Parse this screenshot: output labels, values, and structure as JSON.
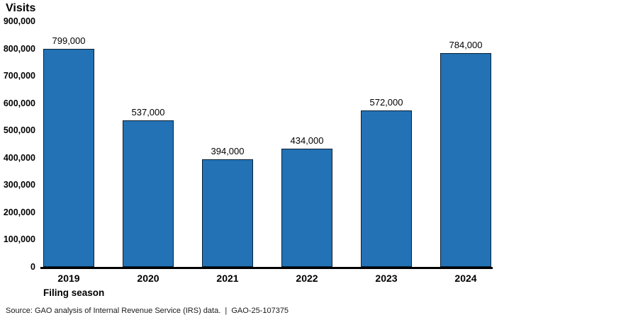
{
  "chart_data": {
    "type": "bar",
    "title": "Visits",
    "categories": [
      "2019",
      "2020",
      "2021",
      "2022",
      "2023",
      "2024"
    ],
    "values": [
      799000,
      537000,
      394000,
      434000,
      572000,
      784000
    ],
    "value_labels": [
      "799,000",
      "537,000",
      "394,000",
      "434,000",
      "572,000",
      "784,000"
    ],
    "xlabel": "Filing season",
    "ylabel": "Visits",
    "ylim": [
      0,
      900000
    ],
    "yticks": [
      "0",
      "100,000",
      "200,000",
      "300,000",
      "400,000",
      "500,000",
      "600,000",
      "700,000",
      "800,000",
      "900,000"
    ],
    "grid": false,
    "legend_position": "none",
    "bar_color": "#2272b5",
    "bar_border_color": "#0b1f33",
    "axis_line_color": "#000000"
  },
  "footer": {
    "source_text": "Source: GAO analysis of Internal Revenue Service (IRS) data.  |  GAO-25-107375"
  }
}
